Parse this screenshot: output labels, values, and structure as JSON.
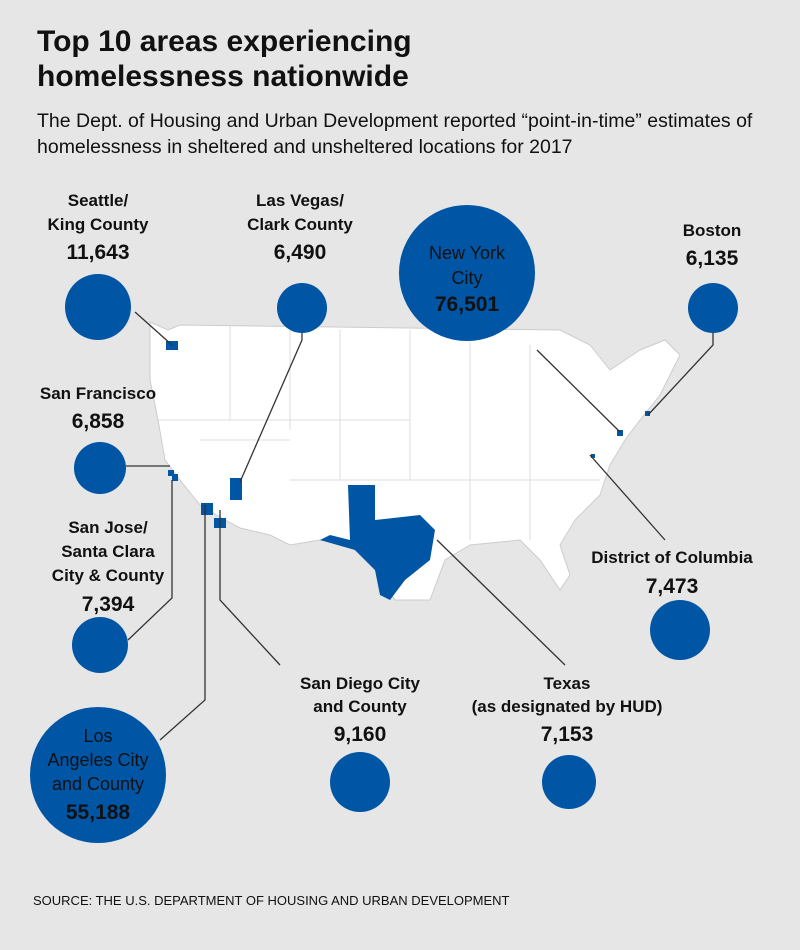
{
  "title": "Top 10 areas experiencing homelessness nationwide",
  "subtitle": "The Dept. of Housing and Urban Development reported “point-in-time” estimates of homelessness in sheltered and unsheltered locations for 2017",
  "areas": [
    {
      "name_lines": [
        "Seattle/",
        "King County"
      ],
      "value": 11643,
      "value_label": "11,643"
    },
    {
      "name_lines": [
        "Las Vegas/",
        "Clark County"
      ],
      "value": 6490,
      "value_label": "6,490"
    },
    {
      "name_lines": [
        "New York",
        "City"
      ],
      "value": 76501,
      "value_label": "76,501"
    },
    {
      "name_lines": [
        "Boston"
      ],
      "value": 6135,
      "value_label": "6,135"
    },
    {
      "name_lines": [
        "San Francisco"
      ],
      "value": 6858,
      "value_label": "6,858"
    },
    {
      "name_lines": [
        "San Jose/",
        "Santa Clara",
        "City & County"
      ],
      "value": 7394,
      "value_label": "7,394"
    },
    {
      "name_lines": [
        "District of Columbia"
      ],
      "value": 7473,
      "value_label": "7,473"
    },
    {
      "name_lines": [
        "Los",
        "Angeles City",
        "and County"
      ],
      "value": 55188,
      "value_label": "55,188"
    },
    {
      "name_lines": [
        "San Diego City",
        "and County"
      ],
      "value": 9160,
      "value_label": "9,160"
    },
    {
      "name_lines": [
        "Texas",
        "(as designated by HUD)"
      ],
      "value": 7153,
      "value_label": "7,153"
    }
  ],
  "source": "SOURCE: THE U.S. DEPARTMENT OF HOUSING AND URBAN DEVELOPMENT"
}
